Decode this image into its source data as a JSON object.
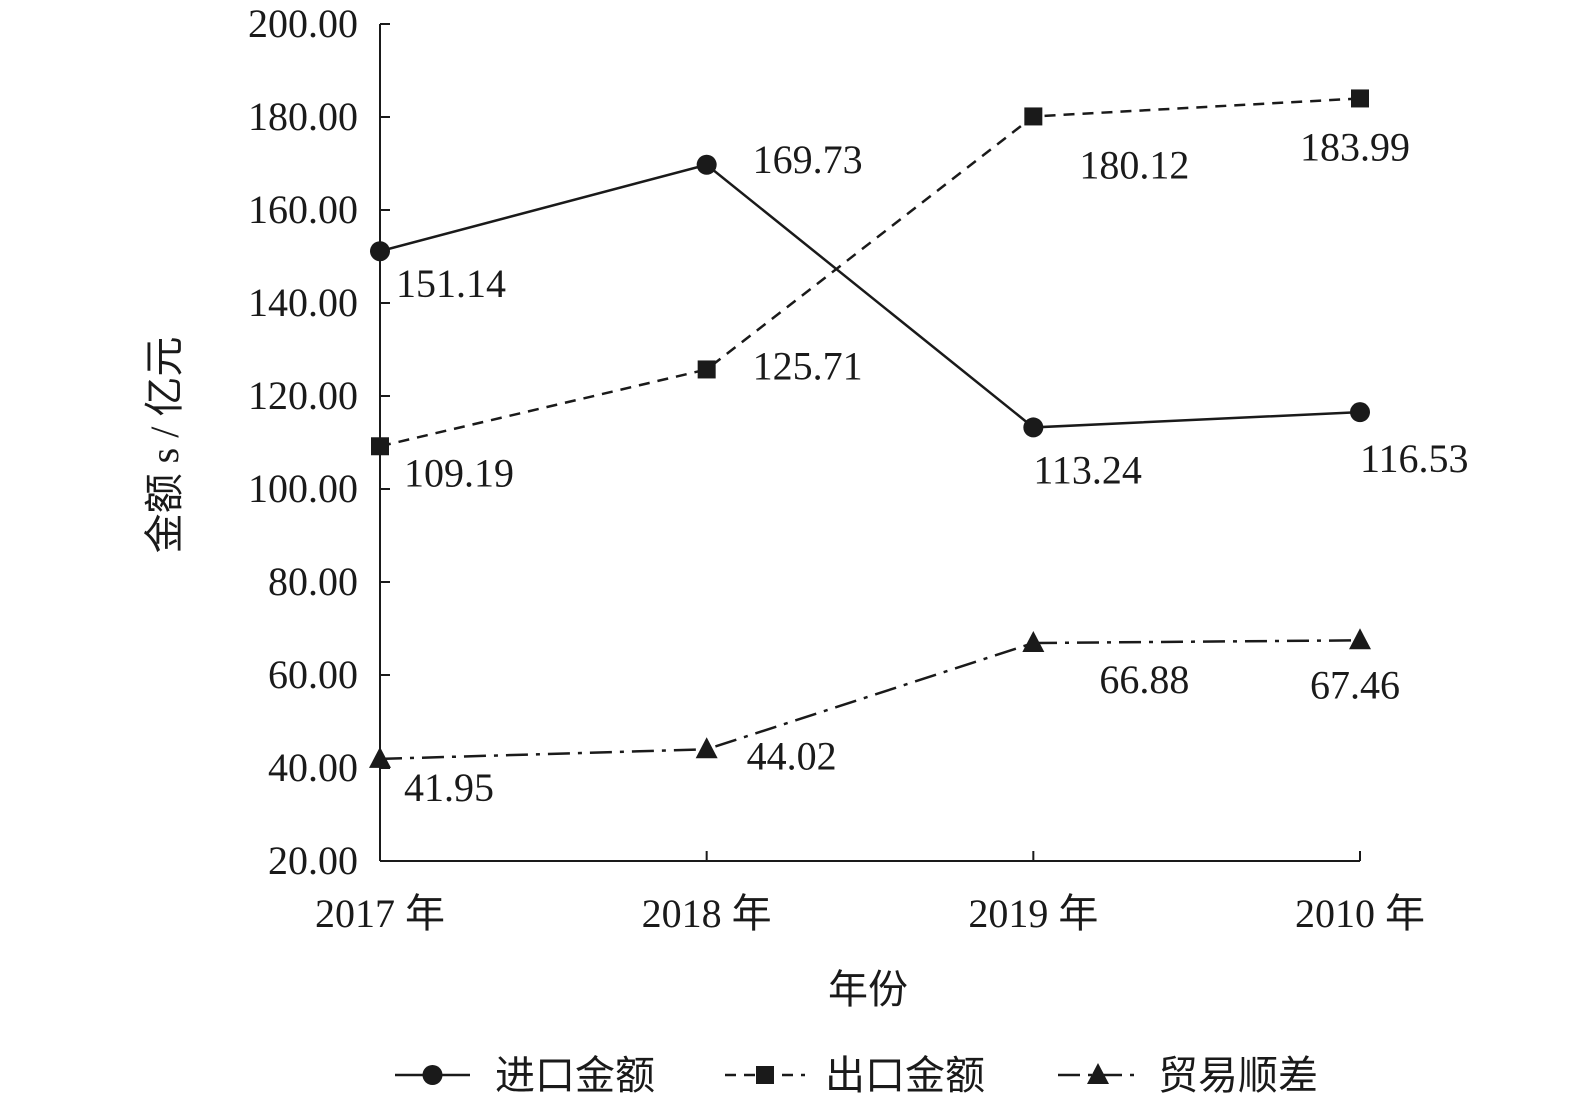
{
  "chart_data": {
    "type": "line",
    "xlabel": "年份",
    "ylabel": "金额 s / 亿元",
    "categories": [
      "2017 年",
      "2018 年",
      "2019 年",
      "2010 年"
    ],
    "ylim": [
      20,
      200
    ],
    "yticks": [
      "20.00",
      "40.00",
      "60.00",
      "80.00",
      "100.00",
      "120.00",
      "140.00",
      "160.00",
      "180.00",
      "200.00"
    ],
    "grid": false,
    "legend_position": "bottom",
    "series": [
      {
        "name": "进口金额",
        "values": [
          151.14,
          169.73,
          113.24,
          116.53
        ],
        "labels": [
          "151.14",
          "169.73",
          "113.24",
          "116.53"
        ],
        "marker": "circle",
        "line_style": "solid"
      },
      {
        "name": "出口金额",
        "values": [
          109.19,
          125.71,
          180.12,
          183.99
        ],
        "labels": [
          "109.19",
          "125.71",
          "180.12",
          "183.99"
        ],
        "marker": "square",
        "line_style": "dashed"
      },
      {
        "name": "贸易顺差",
        "values": [
          41.95,
          44.02,
          66.88,
          67.46
        ],
        "labels": [
          "41.95",
          "44.02",
          "66.88",
          "67.46"
        ],
        "marker": "triangle",
        "line_style": "dash-dot"
      }
    ]
  }
}
